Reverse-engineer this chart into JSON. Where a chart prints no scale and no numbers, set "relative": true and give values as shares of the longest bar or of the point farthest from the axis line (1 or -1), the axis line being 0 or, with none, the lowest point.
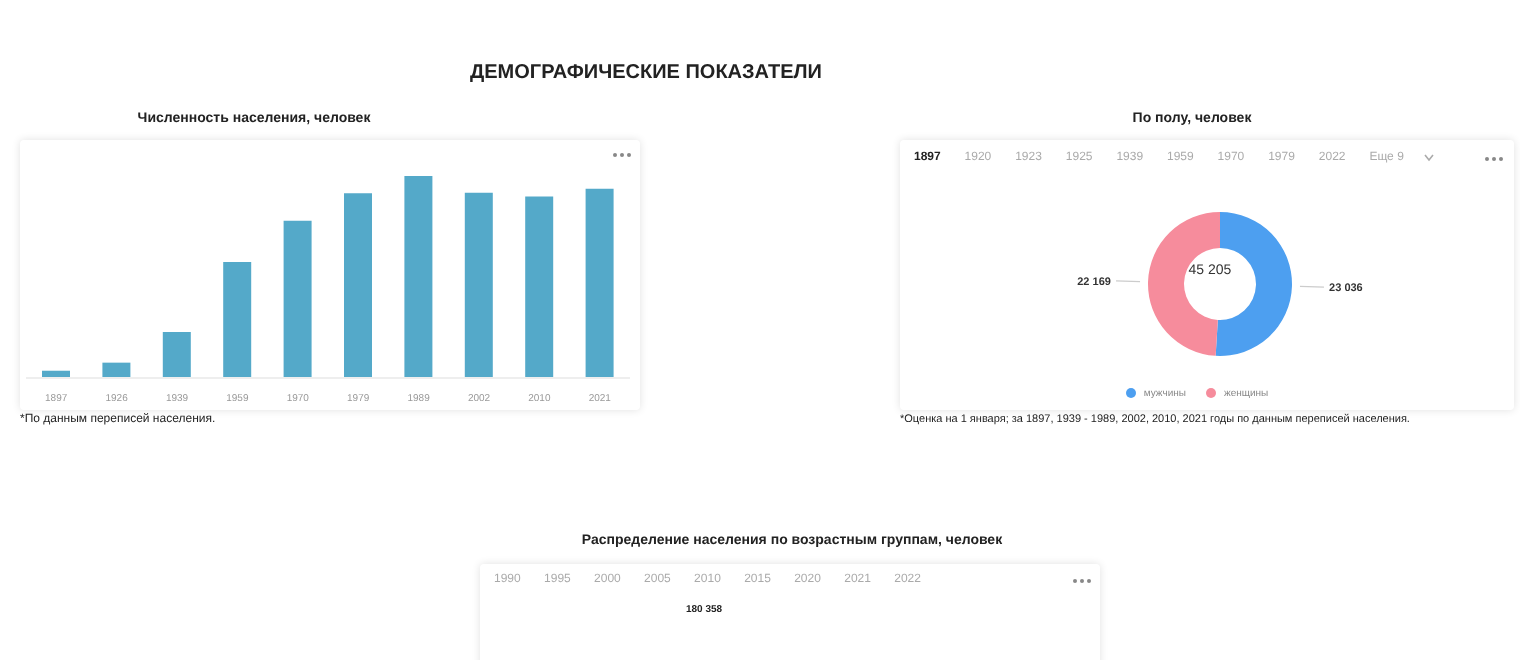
{
  "chart_data": [
    {
      "type": "bar",
      "title": "ДЕМОГРАФИЧЕСКИЕ ПОКАЗАТЕЛИ",
      "subtitle": "Численность населения, человек",
      "relative": true,
      "categories": [
        "1897",
        "1926",
        "1939",
        "1959",
        "1970",
        "1979",
        "1989",
        "2002",
        "2010",
        "2021"
      ],
      "values": [
        0.036,
        0.076,
        0.228,
        0.574,
        0.779,
        0.914,
        1,
        0.917,
        0.898,
        0.937
      ],
      "color": "#54a9c9",
      "annotations": [
        "*По данным переписей населения."
      ]
    },
    {
      "type": "donut",
      "title": "По полу, человек",
      "categories": [
        "мужчины",
        "женщины"
      ],
      "values": [
        23036,
        22169
      ],
      "colors": [
        "#4d9ff0",
        "#f68c9c"
      ],
      "value_labels": [
        "23 036",
        "22 169"
      ],
      "legend": "bottom",
      "annotations": [
        "1897",
        "1920",
        "1923",
        "1925",
        "1939",
        "1959",
        "1970",
        "1979",
        "2022",
        "Еще 9",
        "45 205",
        "*Оценка на 1 января; за 1897, 1939 - 1989, 2002, 2010, 2021 годы по данным переписей населения."
      ]
    },
    {
      "type": "other",
      "title": "Распределение населения по возрастным группам, человек",
      "annotations": [
        "1990",
        "1995",
        "2000",
        "2005",
        "2010",
        "2015",
        "2020",
        "2021",
        "2022",
        "180 358"
      ]
    }
  ]
}
